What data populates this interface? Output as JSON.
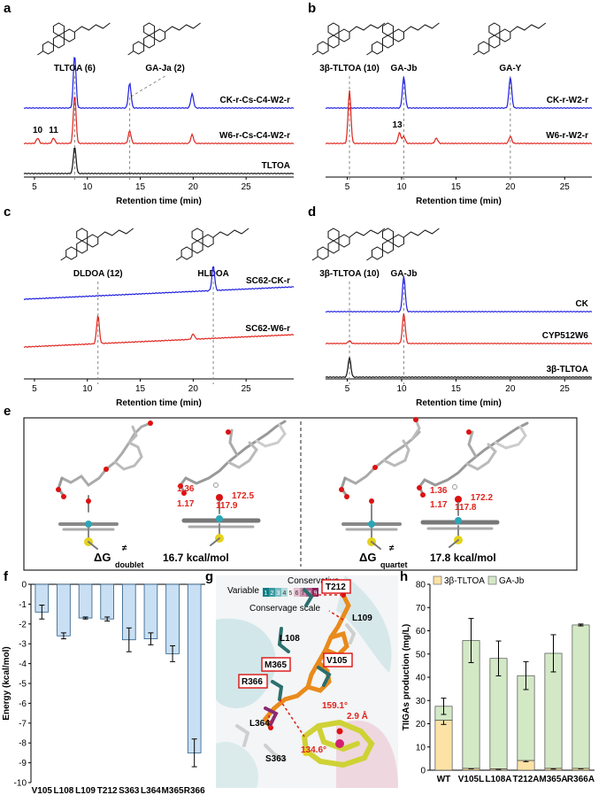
{
  "figure": {
    "panel_letters": [
      "a",
      "b",
      "c",
      "d",
      "e",
      "f",
      "g",
      "h"
    ],
    "chromatograms": [
      {
        "panel": "a",
        "xlabel": "Retention time (min)",
        "ticks": [
          "5",
          "10",
          "15",
          "20",
          "25"
        ],
        "xlim": [
          4,
          29.5
        ],
        "compounds": [
          {
            "name": "TLTOA (6)",
            "x": 8.8
          },
          {
            "name": "GA-Ja (2)",
            "x": 14.0
          }
        ],
        "traces": [
          {
            "name": "CK-r-Cs-C4-W2-r",
            "color": "#1f1fe0",
            "peaks": [
              [
                8.8,
                60
              ],
              [
                14.0,
                28
              ],
              [
                19.9,
                16
              ]
            ]
          },
          {
            "name": "W6-r-Cs-C4-W2-r",
            "color": "#e0231c",
            "peaks": [
              [
                5.3,
                6
              ],
              [
                6.8,
                6
              ],
              [
                8.8,
                55
              ],
              [
                14.0,
                14
              ],
              [
                19.9,
                10
              ]
            ]
          },
          {
            "name": "TLTOA",
            "color": "#111111",
            "peaks": [
              [
                8.8,
                30
              ]
            ]
          }
        ],
        "peak_labels": [
          {
            "text": "10",
            "x": 5.3
          },
          {
            "text": "11",
            "x": 6.8
          }
        ]
      },
      {
        "panel": "b",
        "xlabel": "Retention time (min)",
        "ticks": [
          "5",
          "10",
          "15",
          "20",
          "25"
        ],
        "xlim": [
          3,
          27.5
        ],
        "compounds": [
          {
            "name": "3β-TLTOA (10)",
            "x": 5.2
          },
          {
            "name": "GA-Jb",
            "x": 10.2
          },
          {
            "name": "GA-Y",
            "x": 20.0
          }
        ],
        "traces": [
          {
            "name": "CK-r-W2-r",
            "color": "#1f1fe0",
            "peaks": [
              [
                10.2,
                35
              ],
              [
                20.0,
                35
              ]
            ]
          },
          {
            "name": "W6-r-W2-r",
            "color": "#e0231c",
            "peaks": [
              [
                5.2,
                60
              ],
              [
                9.8,
                12
              ],
              [
                10.2,
                8
              ],
              [
                13.2,
                6
              ],
              [
                20.0,
                8
              ]
            ]
          }
        ],
        "peak_labels": [
          {
            "text": "13",
            "x": 9.6
          }
        ]
      },
      {
        "panel": "c",
        "xlabel": "Retention time (min)",
        "ticks": [
          "5",
          "10",
          "15",
          "20",
          "25"
        ],
        "xlim": [
          4,
          29.5
        ],
        "compounds": [
          {
            "name": "DLDOA (12)",
            "x": 11.0
          },
          {
            "name": "HLDOA",
            "x": 21.9
          }
        ],
        "traces": [
          {
            "name": "SC62-CK-r",
            "color": "#1f1fe0",
            "peaks": [
              [
                21.9,
                28
              ]
            ]
          },
          {
            "name": "SC62-W6-r",
            "color": "#e0231c",
            "peaks": [
              [
                11.0,
                32
              ],
              [
                20.0,
                6
              ]
            ]
          }
        ],
        "peak_labels": []
      },
      {
        "panel": "d",
        "xlabel": "Retention time (min)",
        "ticks": [
          "5",
          "10",
          "15",
          "20",
          "25"
        ],
        "xlim": [
          3,
          27.5
        ],
        "compounds": [
          {
            "name": "3β-TLTOA (10)",
            "x": 5.2
          },
          {
            "name": "GA-Jb",
            "x": 10.2
          }
        ],
        "traces": [
          {
            "name": "CK",
            "color": "#1f1fe0",
            "peaks": [
              [
                10.2,
                40
              ]
            ]
          },
          {
            "name": "CYP512W6",
            "color": "#e0231c",
            "peaks": [
              [
                10.2,
                34
              ],
              [
                5.2,
                3
              ]
            ]
          },
          {
            "name": "3β-TLTOA",
            "color": "#111111",
            "peaks": [
              [
                5.2,
                22
              ]
            ]
          }
        ],
        "peak_labels": []
      }
    ],
    "panel_e": {
      "left": {
        "dG_label": "ΔG",
        "sup": "≠",
        "sub": "doublet",
        "energy": "16.7 kcal/mol",
        "vals": [
          "1.36",
          "1.17",
          "172.5",
          "117.9"
        ]
      },
      "right": {
        "dG_label": "ΔG",
        "sup": "≠",
        "sub": "quartet",
        "energy": "17.8 kcal/mol",
        "vals": [
          "1.36",
          "1.17",
          "172.2",
          "117.8"
        ]
      }
    },
    "panel_g": {
      "scale_left": "Variable",
      "scale_right": "Conservative",
      "scale_caption": "Conservage scale",
      "scale_digits": [
        "1",
        "2",
        "3",
        "4",
        "5",
        "6",
        "7",
        "8",
        "9"
      ],
      "residues_boxed": [
        "T212",
        "M365",
        "R366",
        "V105"
      ],
      "residues_plain": [
        "L109",
        "L108",
        "L364",
        "S363"
      ],
      "measures": [
        "159.1°",
        "2.9 Å",
        "134.6°"
      ]
    }
  },
  "chart_data": [
    {
      "type": "bar",
      "title": "",
      "xlabel": "",
      "ylabel": "Energy (kcal/mol)",
      "categories": [
        "V105",
        "L108",
        "L109",
        "T212",
        "S363",
        "L364",
        "M365",
        "R366"
      ],
      "values": [
        -1.4,
        -2.6,
        -1.7,
        -1.75,
        -2.8,
        -2.75,
        -3.5,
        -8.5
      ],
      "errors": [
        0.35,
        0.15,
        0.05,
        0.1,
        0.6,
        0.3,
        0.4,
        0.7
      ],
      "ylim": [
        -10,
        0
      ],
      "yticks": [
        "0",
        "-1",
        "-2",
        "-3",
        "-4",
        "-5",
        "-6",
        "-7",
        "-8",
        "-9",
        "-10"
      ],
      "color": "#c9dff3"
    },
    {
      "type": "bar",
      "stacked": true,
      "title": "",
      "xlabel": "",
      "ylabel": "TIIGAs production (mg/L)",
      "categories": [
        "WT",
        "V105L",
        "L108A",
        "T212A",
        "M365A",
        "R366A"
      ],
      "series": [
        {
          "name": "3β-TLTOA",
          "color": "#fde2a6",
          "values": [
            21.5,
            0.8,
            0.6,
            4.2,
            0.8,
            0.8
          ],
          "errors": [
            1.8,
            0.2,
            0.2,
            0.5,
            0.3,
            0.2
          ]
        },
        {
          "name": "GA-Jb",
          "color": "#d3e9c6",
          "values": [
            6.0,
            55.0,
            47.5,
            36.5,
            49.5,
            61.7
          ],
          "errors": [
            3.5,
            9.5,
            7.5,
            6.0,
            8.0,
            0.4
          ]
        }
      ],
      "ylim": [
        0,
        80
      ],
      "yticks": [
        "0",
        "10",
        "20",
        "30",
        "40",
        "50",
        "60",
        "70",
        "80"
      ]
    }
  ]
}
